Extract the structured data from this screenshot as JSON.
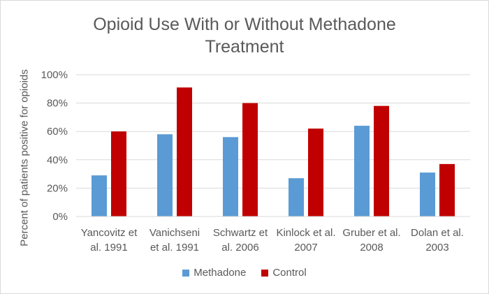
{
  "chart_data": {
    "type": "bar",
    "title_lines": [
      "Opioid Use With or Without Methadone",
      "Treatment"
    ],
    "xlabel": "",
    "ylabel": "Percent of patients positive for opioids",
    "categories": [
      [
        "Yancovitz et",
        "al. 1991"
      ],
      [
        "Vanichseni",
        "et al. 1991"
      ],
      [
        "Schwartz et",
        "al. 2006"
      ],
      [
        "Kinlock et al.",
        "2007"
      ],
      [
        "Gruber et al.",
        "2008"
      ],
      [
        "Dolan et al.",
        "2003"
      ]
    ],
    "series": [
      {
        "name": "Methadone",
        "color": "#5b9bd5",
        "values": [
          29,
          58,
          56,
          27,
          64,
          31
        ]
      },
      {
        "name": "Control",
        "color": "#c00000",
        "values": [
          60,
          91,
          80,
          62,
          78,
          37
        ]
      }
    ],
    "ylim": [
      0,
      100
    ],
    "yticks": [
      0,
      20,
      40,
      60,
      80,
      100
    ],
    "ytick_labels": [
      "0%",
      "20%",
      "40%",
      "60%",
      "80%",
      "100%"
    ],
    "grid": true,
    "legend": "bottom"
  }
}
